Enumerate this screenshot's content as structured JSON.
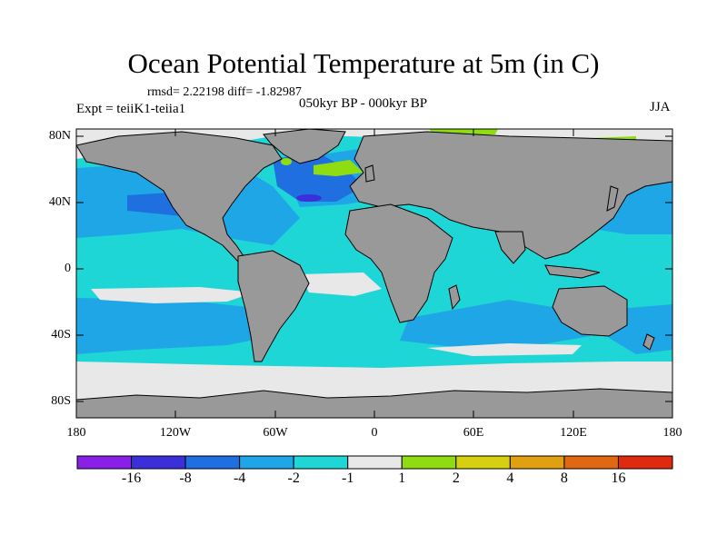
{
  "title": "Ocean Potential Temperature at 5m (in C)",
  "stats": "rmsd= 2.22198 diff= -1.82987",
  "experiment": "Expt = teiiK1-teiia1",
  "period": "050kyr BP - 000kyr BP",
  "season": "JJA",
  "lat_ticks": [
    "80N",
    "40N",
    "0",
    "40S",
    "80S"
  ],
  "lon_ticks": [
    "180",
    "120W",
    "60W",
    "0",
    "60E",
    "120E",
    "180"
  ],
  "colorbar": {
    "labels": [
      "-16",
      "-8",
      "-4",
      "-2",
      "-1",
      "1",
      "2",
      "4",
      "8",
      "16"
    ],
    "colors": [
      "#8a1fe8",
      "#3a2fd8",
      "#1f6fe0",
      "#1fa6e6",
      "#1fd6d6",
      "#e8e8e8",
      "#8fdc10",
      "#d6d010",
      "#e0a010",
      "#e06810",
      "#e02a10"
    ]
  },
  "map_colors": {
    "land": "#999999",
    "ocean_default": "#1fd6d6",
    "sea_ice": "#e8e8e8"
  }
}
